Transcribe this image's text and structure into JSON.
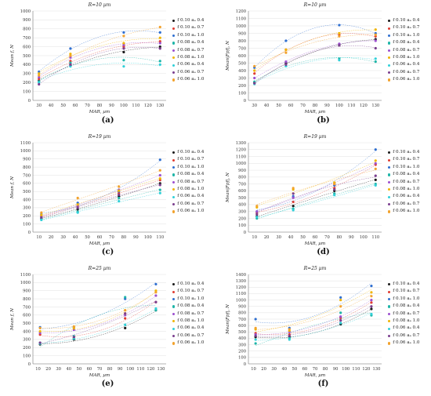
{
  "legend_labels": [
    "f 0.10  aₐ 0.4",
    "f 0.10  aₐ 0.7",
    "f 0.10  aₐ 1.0",
    "f 0.08  aₐ 0.4",
    "f 0.08  aₐ 0.7",
    "f 0.08  aₐ 1.0",
    "f 0.06  aₐ 0.4",
    "f 0.06  aₐ 0.7",
    "f 0.06  aₐ 1.0"
  ],
  "series_colors": [
    "#1a1a1a",
    "#e03c31",
    "#2f6fd0",
    "#1fb5a8",
    "#9c4fcf",
    "#f0b400",
    "#30d0d8",
    "#7a3e8e",
    "#f2a22d"
  ],
  "chart_data": [
    {
      "type": "scatter",
      "panel": "(a)",
      "title": "R=10 µm",
      "xlabel": "MAR, µm",
      "ylabel": "Mean f, N",
      "xlim": [
        25,
        135
      ],
      "ylim": [
        0,
        1000
      ],
      "xticks": [
        30,
        40,
        50,
        60,
        70,
        80,
        90,
        100,
        110,
        120,
        130
      ],
      "yticks": [
        0,
        100,
        200,
        300,
        400,
        500,
        600,
        700,
        800,
        900,
        1000
      ],
      "grid": true,
      "legend": "right",
      "x": [
        30,
        56,
        100,
        130
      ],
      "series": [
        {
          "values": [
            220,
            400,
            540,
            600
          ]
        },
        {
          "values": [
            240,
            440,
            600,
            660
          ]
        },
        {
          "values": [
            320,
            580,
            760,
            760
          ]
        },
        {
          "values": [
            210,
            420,
            450,
            440
          ]
        },
        {
          "values": [
            260,
            480,
            620,
            640
          ]
        },
        {
          "values": [
            300,
            520,
            640,
            700
          ]
        },
        {
          "values": [
            200,
            380,
            380,
            400
          ]
        },
        {
          "values": [
            180,
            400,
            580,
            580
          ]
        },
        {
          "values": [
            280,
            500,
            720,
            820
          ]
        }
      ]
    },
    {
      "type": "scatter",
      "panel": "(b)",
      "title": "R=10 µm",
      "xlabel": "MAR, µm",
      "ylabel": "Mean|Fpf|, N",
      "xlim": [
        25,
        135
      ],
      "ylim": [
        0,
        1200
      ],
      "xticks": [
        30,
        40,
        50,
        60,
        70,
        80,
        90,
        100,
        110,
        120,
        130
      ],
      "yticks": [
        0,
        100,
        200,
        300,
        400,
        500,
        600,
        700,
        800,
        900,
        1000,
        1100,
        1200
      ],
      "grid": true,
      "legend": "right",
      "x": [
        30,
        56,
        100,
        130
      ],
      "series": [
        {
          "values": [
            240,
            500,
            740,
            820
          ]
        },
        {
          "values": [
            360,
            680,
            880,
            860
          ]
        },
        {
          "values": [
            440,
            800,
            1010,
            900
          ]
        },
        {
          "values": [
            250,
            470,
            560,
            520
          ]
        },
        {
          "values": [
            300,
            520,
            760,
            800
          ]
        },
        {
          "values": [
            400,
            680,
            900,
            950
          ]
        },
        {
          "values": [
            220,
            460,
            540,
            560
          ]
        },
        {
          "values": [
            230,
            480,
            740,
            700
          ]
        },
        {
          "values": [
            460,
            640,
            860,
            880
          ]
        }
      ]
    },
    {
      "type": "scatter",
      "panel": "(c)",
      "title": "R=19 µm",
      "xlabel": "MAR, µm",
      "ylabel": "Mean f, N",
      "xlim": [
        5,
        115
      ],
      "ylim": [
        0,
        1100
      ],
      "xticks": [
        10,
        20,
        30,
        40,
        50,
        60,
        70,
        80,
        90,
        100,
        110
      ],
      "yticks": [
        0,
        100,
        200,
        300,
        400,
        500,
        600,
        700,
        800,
        900,
        1000,
        1100
      ],
      "grid": true,
      "legend": "right",
      "x": [
        12,
        42,
        76,
        110
      ],
      "series": [
        {
          "values": [
            170,
            280,
            440,
            600
          ]
        },
        {
          "values": [
            190,
            320,
            480,
            640
          ]
        },
        {
          "values": [
            220,
            360,
            500,
            890
          ]
        },
        {
          "values": [
            160,
            250,
            420,
            520
          ]
        },
        {
          "values": [
            200,
            330,
            520,
            700
          ]
        },
        {
          "values": [
            210,
            340,
            510,
            660
          ]
        },
        {
          "values": [
            150,
            240,
            380,
            480
          ]
        },
        {
          "values": [
            180,
            300,
            460,
            580
          ]
        },
        {
          "values": [
            240,
            420,
            560,
            760
          ]
        }
      ]
    },
    {
      "type": "scatter",
      "panel": "(d)",
      "title": "R=19 µm",
      "xlabel": "MAR, µm",
      "ylabel": "Mean|Fpf|, N",
      "xlim": [
        5,
        115
      ],
      "ylim": [
        0,
        1300
      ],
      "xticks": [
        10,
        20,
        30,
        40,
        50,
        60,
        70,
        80,
        90,
        100,
        110
      ],
      "yticks": [
        0,
        100,
        200,
        300,
        400,
        500,
        600,
        700,
        800,
        900,
        1000,
        1100,
        1200,
        1300
      ],
      "grid": true,
      "legend": "right",
      "x": [
        12,
        42,
        76,
        110
      ],
      "series": [
        {
          "values": [
            230,
            380,
            600,
            760
          ]
        },
        {
          "values": [
            280,
            440,
            640,
            980
          ]
        },
        {
          "values": [
            300,
            520,
            680,
            1200
          ]
        },
        {
          "values": [
            200,
            340,
            560,
            700
          ]
        },
        {
          "values": [
            300,
            500,
            700,
            1000
          ]
        },
        {
          "values": [
            360,
            620,
            720,
            1040
          ]
        },
        {
          "values": [
            220,
            320,
            540,
            680
          ]
        },
        {
          "values": [
            260,
            560,
            620,
            820
          ]
        },
        {
          "values": [
            380,
            640,
            700,
            920
          ]
        }
      ]
    },
    {
      "type": "scatter",
      "panel": "(e)",
      "title": "R=25 µm",
      "xlabel": "MAR, µm",
      "ylabel": "Mean f, N",
      "xlim": [
        5,
        135
      ],
      "ylim": [
        0,
        1100
      ],
      "xticks": [
        10,
        20,
        30,
        40,
        50,
        60,
        70,
        80,
        90,
        100,
        110,
        120,
        130
      ],
      "yticks": [
        0,
        100,
        200,
        300,
        400,
        500,
        600,
        700,
        800,
        900,
        1000,
        1100
      ],
      "grid": true,
      "legend": "right",
      "x": [
        12,
        45,
        95,
        125
      ],
      "series": [
        {
          "values": [
            240,
            300,
            440,
            660
          ]
        },
        {
          "values": [
            360,
            320,
            560,
            760
          ]
        },
        {
          "values": [
            450,
            450,
            800,
            980
          ]
        },
        {
          "values": [
            260,
            340,
            820,
            660
          ]
        },
        {
          "values": [
            380,
            420,
            600,
            840
          ]
        },
        {
          "values": [
            400,
            440,
            620,
            900
          ]
        },
        {
          "values": [
            250,
            310,
            480,
            680
          ]
        },
        {
          "values": [
            260,
            330,
            620,
            760
          ]
        },
        {
          "values": [
            440,
            460,
            660,
            880
          ]
        }
      ]
    },
    {
      "type": "scatter",
      "panel": "(f)",
      "title": "R=25 µm",
      "xlabel": "MAR, µm",
      "ylabel": "Mean|Fpf|, N",
      "xlim": [
        5,
        135
      ],
      "ylim": [
        0,
        1400
      ],
      "xticks": [
        10,
        20,
        30,
        40,
        50,
        60,
        70,
        80,
        90,
        100,
        110,
        120,
        130
      ],
      "yticks": [
        0,
        100,
        200,
        300,
        400,
        500,
        600,
        700,
        800,
        900,
        1000,
        1100,
        1200,
        1300,
        1400
      ],
      "grid": true,
      "legend": "right",
      "x": [
        12,
        45,
        95,
        125
      ],
      "series": [
        {
          "values": [
            420,
            420,
            620,
            860
          ]
        },
        {
          "values": [
            480,
            460,
            720,
            960
          ]
        },
        {
          "values": [
            700,
            560,
            1040,
            1220
          ]
        },
        {
          "values": [
            320,
            400,
            800,
            760
          ]
        },
        {
          "values": [
            460,
            500,
            740,
            1000
          ]
        },
        {
          "values": [
            540,
            520,
            1000,
            1120
          ]
        },
        {
          "values": [
            380,
            380,
            640,
            780
          ]
        },
        {
          "values": [
            440,
            440,
            680,
            900
          ]
        },
        {
          "values": [
            560,
            540,
            900,
            1060
          ]
        }
      ]
    }
  ],
  "panel_labels": [
    "(a)",
    "(b)",
    "(c)",
    "(d)",
    "(e)",
    "(f)"
  ]
}
